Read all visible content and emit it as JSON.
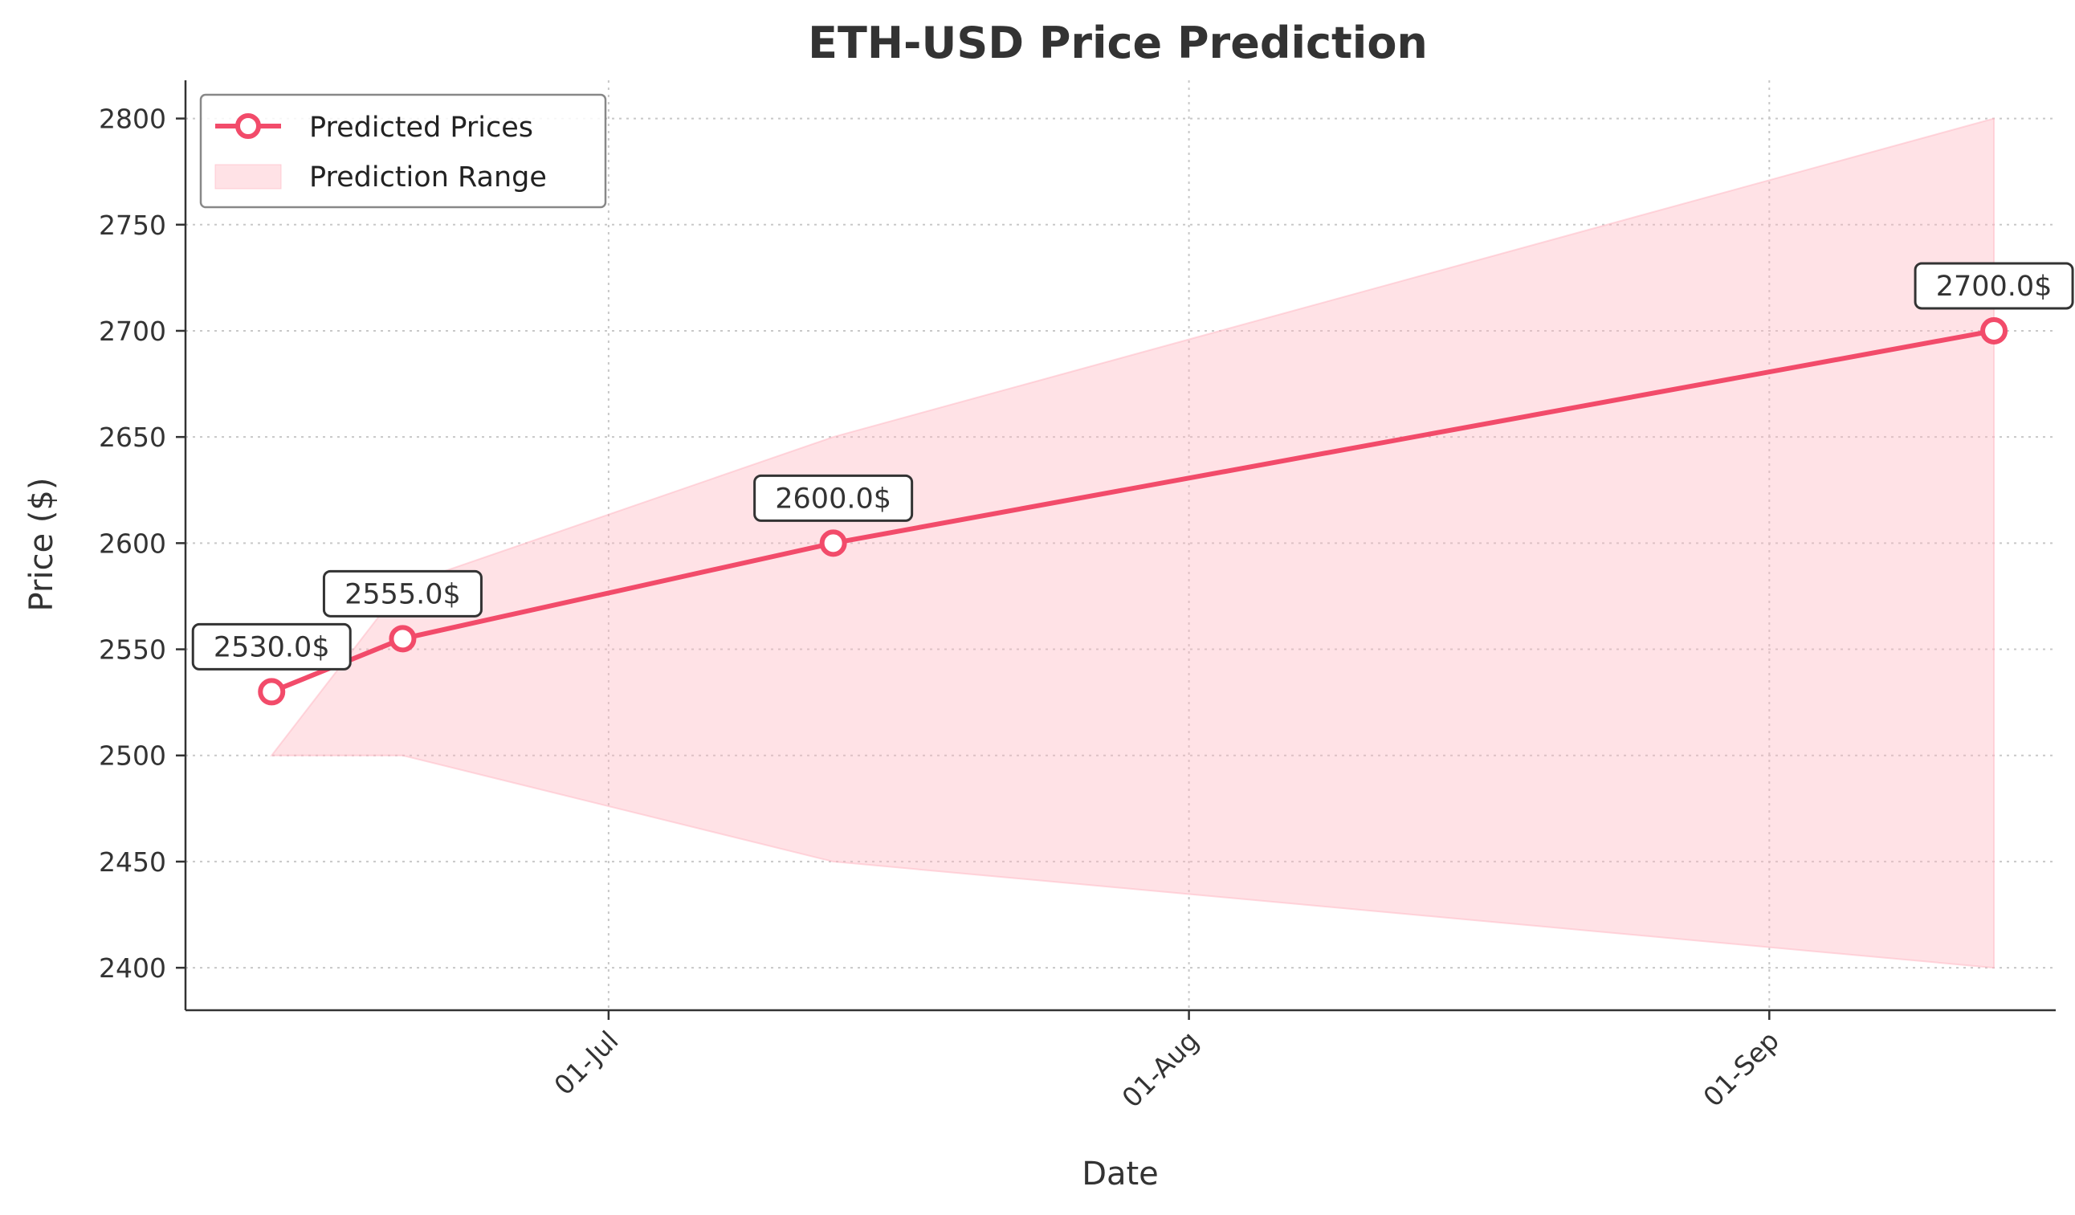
{
  "chart_data": {
    "type": "line",
    "title": "ETH-USD Price Prediction",
    "xlabel": "Date",
    "ylabel": "Price ($)",
    "x_ticks": [
      "01-Jul",
      "01-Aug",
      "01-Sep"
    ],
    "y_ticks": [
      2400,
      2450,
      2500,
      2550,
      2600,
      2650,
      2700,
      2750,
      2800
    ],
    "ylim": [
      2380,
      2818
    ],
    "xlim_day_of_year": [
      159.4,
      259.3
    ],
    "grid": true,
    "legend_position": "top-left",
    "series": [
      {
        "name": "Predicted Prices",
        "color": "#f24b6a",
        "marker": "circle-open",
        "dates_day_of_year": [
          164,
          171,
          194,
          256
        ],
        "values": [
          2530.0,
          2555.0,
          2600.0,
          2700.0
        ],
        "labels": [
          "2530.0$",
          "2555.0$",
          "2600.0$",
          "2700.0$"
        ]
      }
    ],
    "range": {
      "name": "Prediction Range",
      "color": "#ffb6c1",
      "dates_day_of_year": [
        164,
        171,
        194,
        256
      ],
      "lower": [
        2500,
        2500,
        2450,
        2400
      ],
      "upper": [
        2500,
        2580,
        2650,
        2800
      ]
    }
  }
}
